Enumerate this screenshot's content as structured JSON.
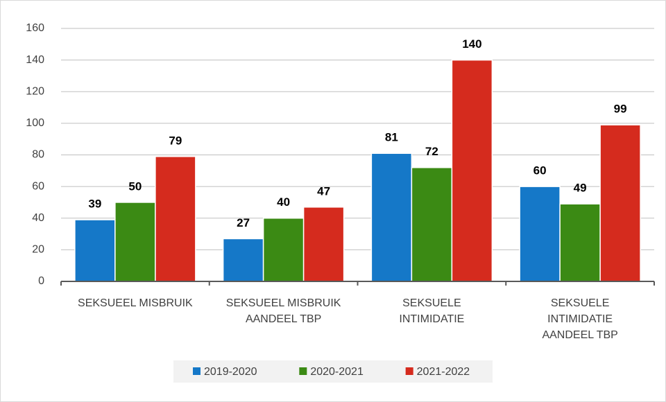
{
  "chart_data": {
    "type": "bar",
    "categories": [
      "SEKSUEEL MISBRUIK",
      "SEKSUEEL MISBRUIK AANDEEL TBP",
      "SEKSUELE INTIMIDATIE",
      "SEKSUELE INTIMIDATIE AANDEEL TBP"
    ],
    "series": [
      {
        "name": "2019-2020",
        "color": "#1578c8",
        "values": [
          39,
          27,
          81,
          60
        ]
      },
      {
        "name": "2020-2021",
        "color": "#3b8a14",
        "values": [
          50,
          40,
          72,
          49
        ]
      },
      {
        "name": "2021-2022",
        "color": "#d52b1e",
        "values": [
          79,
          47,
          140,
          99
        ]
      }
    ],
    "ylim": [
      0,
      160
    ],
    "yticks": [
      0,
      20,
      40,
      60,
      80,
      100,
      120,
      140,
      160
    ],
    "grid": true,
    "legend": "bottom"
  }
}
